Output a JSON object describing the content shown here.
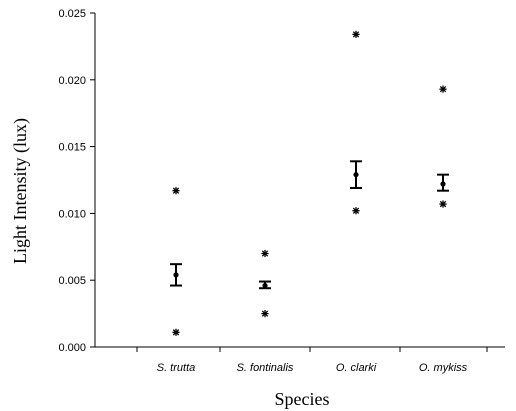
{
  "chart_data": {
    "type": "scatter",
    "title": "",
    "xlabel": "Species",
    "ylabel": "Light Intensity (lux)",
    "categories": [
      "S. trutta",
      "S. fontinalis",
      "O. clarki",
      "O. mykiss"
    ],
    "ylim": [
      0,
      0.025
    ],
    "yticks": [
      "0.000",
      "0.005",
      "0.010",
      "0.015",
      "0.020",
      "0.025"
    ],
    "grid": false,
    "series": [
      {
        "marker": "dot-with-error-bar",
        "values": [
          0.0054,
          0.0046,
          0.0129,
          0.0122
        ],
        "error_low": [
          0.0046,
          0.0044,
          0.0119,
          0.0117
        ],
        "error_high": [
          0.0062,
          0.0049,
          0.0139,
          0.0129
        ]
      },
      {
        "marker": "asterisk",
        "values": [
          0.0117,
          0.007,
          0.0234,
          0.0193
        ]
      },
      {
        "marker": "asterisk",
        "values": [
          0.0011,
          0.0025,
          0.0102,
          0.0107
        ]
      }
    ]
  }
}
